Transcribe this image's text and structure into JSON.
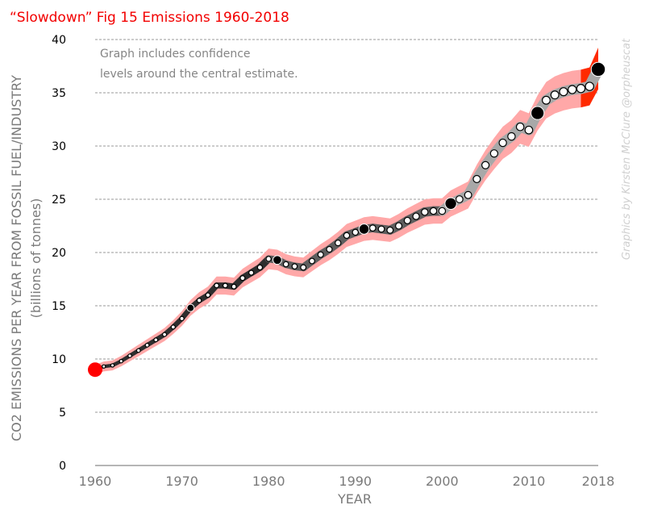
{
  "chart_data": {
    "type": "line",
    "title": "“Slowdown” Fig 15 Emissions 1960-2018",
    "xlabel": "YEAR",
    "ylabel": "CO2 EMISSIONS PER YEAR FROM FOSSIL FUEL/INDUSTRY",
    "ylabel_sub": "(billions of tonnes)",
    "annotation": [
      "Graph includes confidence",
      "levels around the central estimate."
    ],
    "credit": "Graphics by Kirsten McClure @orpheuscat",
    "xlim": [
      1960,
      2018
    ],
    "ylim": [
      0,
      40
    ],
    "x_ticks": [
      1960,
      1970,
      1980,
      1990,
      2000,
      2010,
      2018
    ],
    "y_ticks": [
      0,
      5,
      10,
      15,
      20,
      25,
      30,
      35,
      40
    ],
    "grid": "horizontal-dashed",
    "colors": {
      "title": "#f20000",
      "band": "#ffa8a8",
      "band_recent": "#ff2a00",
      "line_early": "#2e2e2e",
      "line_mid": "#5e5e5e",
      "line_late": "#a8a8a8",
      "start_marker": "#ff0000",
      "decade_marker": "#000000",
      "year_marker": "#ffffff"
    },
    "confidence_band_halfwidth_fraction": 0.05,
    "recent_band_from_year": 2016,
    "series": [
      {
        "name": "Central estimate",
        "x": [
          1960,
          1961,
          1962,
          1963,
          1964,
          1965,
          1966,
          1967,
          1968,
          1969,
          1970,
          1971,
          1972,
          1973,
          1974,
          1975,
          1976,
          1977,
          1978,
          1979,
          1980,
          1981,
          1982,
          1983,
          1984,
          1985,
          1986,
          1987,
          1988,
          1989,
          1990,
          1991,
          1992,
          1993,
          1994,
          1995,
          1996,
          1997,
          1998,
          1999,
          2000,
          2001,
          2002,
          2003,
          2004,
          2005,
          2006,
          2007,
          2008,
          2009,
          2010,
          2011,
          2012,
          2013,
          2014,
          2015,
          2016,
          2017,
          2018
        ],
        "y": [
          9.0,
          9.3,
          9.4,
          9.8,
          10.3,
          10.8,
          11.3,
          11.8,
          12.3,
          13.0,
          13.8,
          14.8,
          15.5,
          16.0,
          16.9,
          16.9,
          16.8,
          17.6,
          18.1,
          18.6,
          19.4,
          19.3,
          18.9,
          18.7,
          18.6,
          19.2,
          19.8,
          20.3,
          20.9,
          21.6,
          21.9,
          22.2,
          22.3,
          22.2,
          22.1,
          22.5,
          23.0,
          23.4,
          23.8,
          23.9,
          23.9,
          24.6,
          25.0,
          25.4,
          26.9,
          28.2,
          29.3,
          30.3,
          30.9,
          31.8,
          31.5,
          33.1,
          34.3,
          34.8,
          35.1,
          35.3,
          35.4,
          35.6,
          37.2
        ]
      }
    ],
    "highlighted_years": [
      1971,
      1981,
      1991,
      2001,
      2011,
      2018
    ],
    "start_year": 1960
  }
}
